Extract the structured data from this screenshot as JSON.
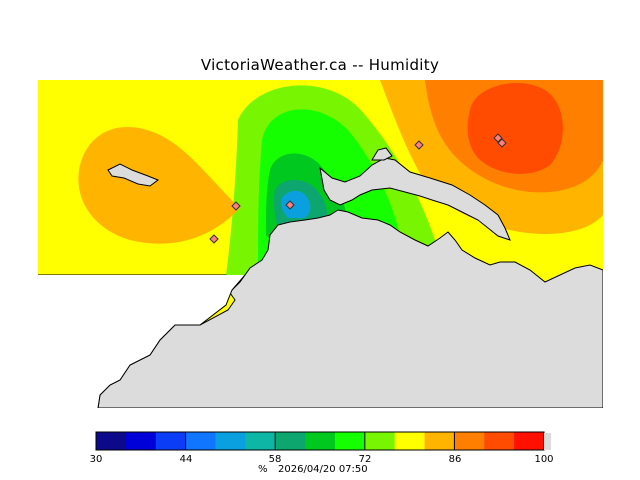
{
  "title": "VictoriaWeather.ca -- Humidity",
  "legend": {
    "ticks": [
      "30",
      "44",
      "58",
      "72",
      "86",
      "100"
    ],
    "unit": "%",
    "timestamp": "2026/04/20 07:50",
    "colors": [
      "#0c0a8a",
      "#0000d9",
      "#0b3cf6",
      "#1075ff",
      "#0aa0e0",
      "#0db6a5",
      "#0da66f",
      "#00c81f",
      "#16ff00",
      "#78f500",
      "#ffff00",
      "#ffb400",
      "#ff8000",
      "#ff4c00",
      "#ff1000"
    ]
  },
  "stations": [
    "station-1",
    "station-2",
    "station-3",
    "station-4",
    "station-5",
    "station-6"
  ]
}
